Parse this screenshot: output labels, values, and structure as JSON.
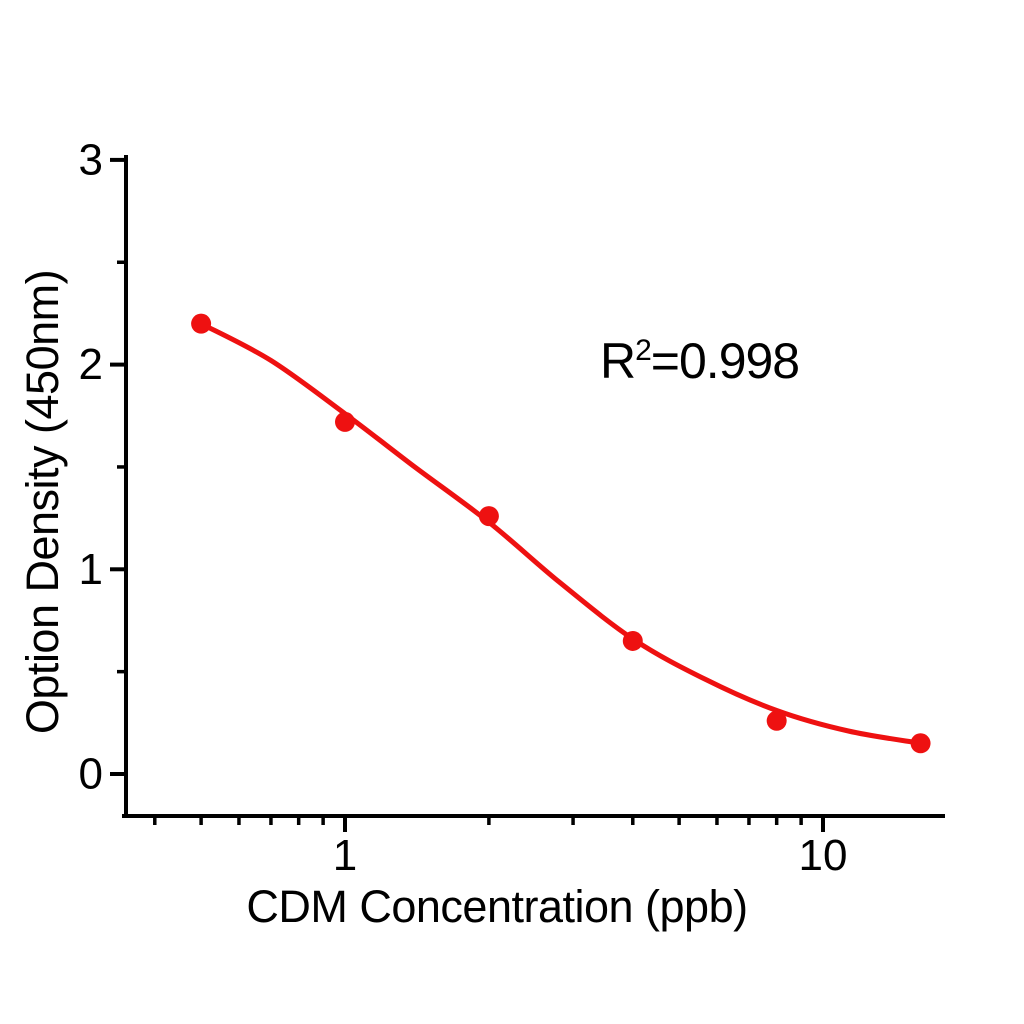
{
  "figure": {
    "background_color": "#ffffff"
  },
  "chart_data": {
    "type": "scatter",
    "title": "",
    "xlabel": "CDM Concentration  (ppb)",
    "ylabel": "Option Density  (450nm)",
    "x_scale": "log10",
    "y_scale": "linear",
    "xlim": [
      0.35,
      17.8
    ],
    "ylim": [
      -0.2,
      3.05
    ],
    "grid": false,
    "legend": false,
    "x_major_ticks": [
      1,
      10
    ],
    "x_major_tick_labels": [
      "1",
      "10"
    ],
    "x_minor_ticks": [
      0.4,
      0.5,
      0.6,
      0.7,
      0.8,
      0.9,
      2,
      3,
      4,
      5,
      6,
      7,
      8,
      9
    ],
    "y_major_ticks": [
      0,
      1,
      2,
      3
    ],
    "y_major_tick_labels": [
      "0",
      "1",
      "2",
      "3"
    ],
    "y_minor_ticks": [
      0.5,
      1.5,
      2.5
    ],
    "series": [
      {
        "name": "standard-points",
        "kind": "scatter",
        "x": [
          0.5,
          1,
          2,
          4,
          8,
          16
        ],
        "y": [
          2.2,
          1.72,
          1.26,
          0.65,
          0.26,
          0.15
        ],
        "color": "#ee1111",
        "marker": "circle",
        "marker_radius": 10
      },
      {
        "name": "4pl-fit-curve",
        "kind": "line",
        "x": [
          0.5,
          0.7,
          1.0,
          1.4,
          2.0,
          2.8,
          4.0,
          5.7,
          8.0,
          11.3,
          16
        ],
        "y": [
          2.2,
          2.02,
          1.76,
          1.5,
          1.23,
          0.94,
          0.66,
          0.46,
          0.31,
          0.21,
          0.15
        ],
        "color": "#ee1111",
        "stroke_width": 5
      }
    ],
    "annotation": {
      "text": "R2=0.998",
      "base": "R",
      "superscript": "2",
      "rest": "=0.998"
    }
  },
  "style": {
    "axis_color": "#000000",
    "text_color": "#000000",
    "accent_color": "#ee1111"
  }
}
